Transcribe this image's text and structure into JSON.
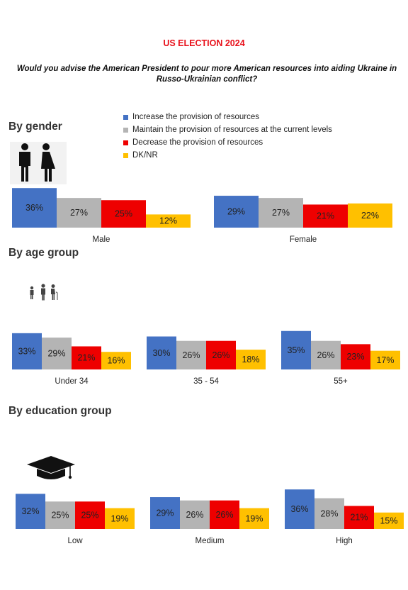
{
  "title": "US ELECTION 2024",
  "question": "Would you advise the American President to pour more American resources into aiding Ukraine in Russo-Ukrainian conflict?",
  "sections": {
    "gender": "By gender",
    "age": "By age group",
    "education": "By education group"
  },
  "icons": {
    "gender": "man-woman-icon",
    "age": "family-age-icon",
    "education": "graduation-cap-icon"
  },
  "colors": {
    "increase": "#4472c4",
    "maintain": "#b4b4b4",
    "decrease": "#ee0000",
    "dknr": "#ffc000"
  },
  "chart_data": {
    "type": "bar",
    "unit": "%",
    "series_names": [
      "Increase the provision of resources",
      "Maintain the provision of resources at the current levels",
      "Decrease the provision of resources",
      "DK/NR"
    ],
    "groups": [
      {
        "section": "By gender",
        "category": "Male",
        "values": [
          36,
          27,
          25,
          12
        ]
      },
      {
        "section": "By gender",
        "category": "Female",
        "values": [
          29,
          27,
          21,
          22
        ]
      },
      {
        "section": "By age group",
        "category": "Under 34",
        "values": [
          33,
          29,
          21,
          16
        ]
      },
      {
        "section": "By age group",
        "category": "35 - 54",
        "values": [
          30,
          26,
          26,
          18
        ]
      },
      {
        "section": "By age group",
        "category": "55+",
        "values": [
          35,
          26,
          23,
          17
        ]
      },
      {
        "section": "By education group",
        "category": "Low",
        "values": [
          32,
          25,
          25,
          19
        ]
      },
      {
        "section": "By education group",
        "category": "Medium",
        "values": [
          29,
          26,
          26,
          19
        ]
      },
      {
        "section": "By education group",
        "category": "High",
        "values": [
          36,
          28,
          21,
          15
        ]
      }
    ]
  }
}
